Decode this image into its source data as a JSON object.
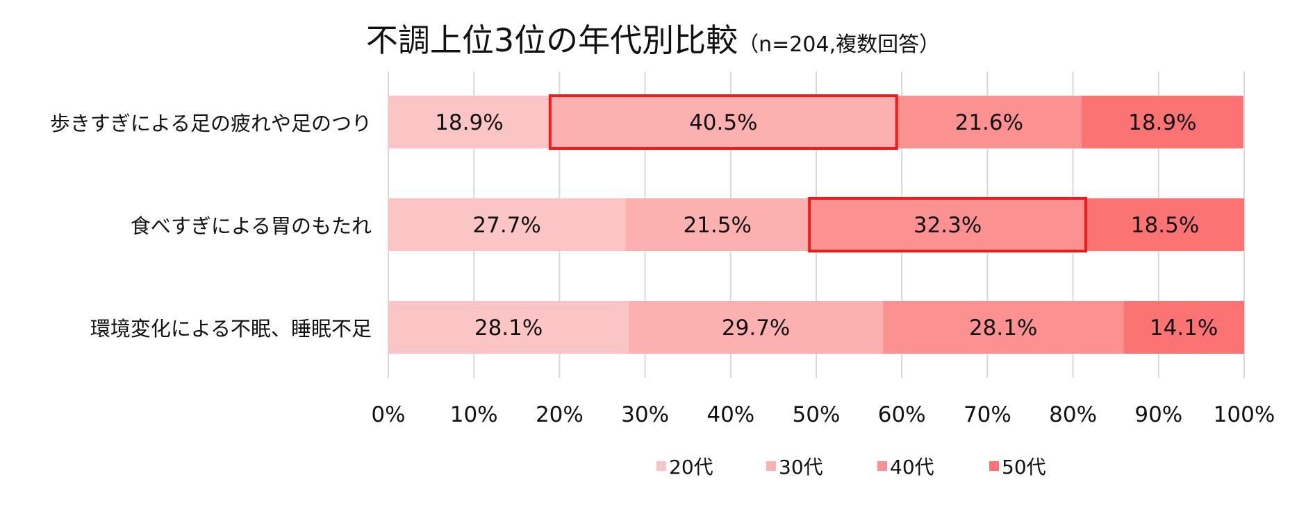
{
  "chart_data": {
    "type": "bar",
    "orientation": "horizontal",
    "stacked": "percent",
    "title": "不調上位3位の年代別比較",
    "subtitle": "（n=204,複数回答）",
    "categories": [
      "歩きすぎによる足の疲れや足のつり",
      "食べすぎによる胃のもたれ",
      "環境変化による不眠、睡眠不足"
    ],
    "series": [
      {
        "name": "20代",
        "values": [
          18.9,
          27.7,
          28.1
        ],
        "labels": [
          "18.9%",
          "27.7%",
          "28.1%"
        ],
        "color": "#fcc5c5"
      },
      {
        "name": "30代",
        "values": [
          40.5,
          21.5,
          29.7
        ],
        "labels": [
          "40.5%",
          "21.5%",
          "29.7%"
        ],
        "color": "#fcb0b0"
      },
      {
        "name": "40代",
        "values": [
          21.6,
          32.3,
          28.1
        ],
        "labels": [
          "21.6%",
          "32.3%",
          "28.1%"
        ],
        "color": "#fb9191"
      },
      {
        "name": "50代",
        "values": [
          18.9,
          18.5,
          14.1
        ],
        "labels": [
          "18.9%",
          "18.5%",
          "14.1%"
        ],
        "color": "#fb7373"
      }
    ],
    "highlighted": [
      {
        "category": "歩きすぎによる足の疲れや足のつり",
        "series": "30代"
      },
      {
        "category": "食べすぎによる胃のもたれ",
        "series": "40代"
      }
    ],
    "highlight_color": "#ee1c1c",
    "xlim": [
      0,
      100
    ],
    "x_ticks": [
      "0%",
      "10%",
      "20%",
      "30%",
      "40%",
      "50%",
      "60%",
      "70%",
      "80%",
      "90%",
      "100%"
    ],
    "grid": "vertical",
    "legend": "bottom"
  }
}
